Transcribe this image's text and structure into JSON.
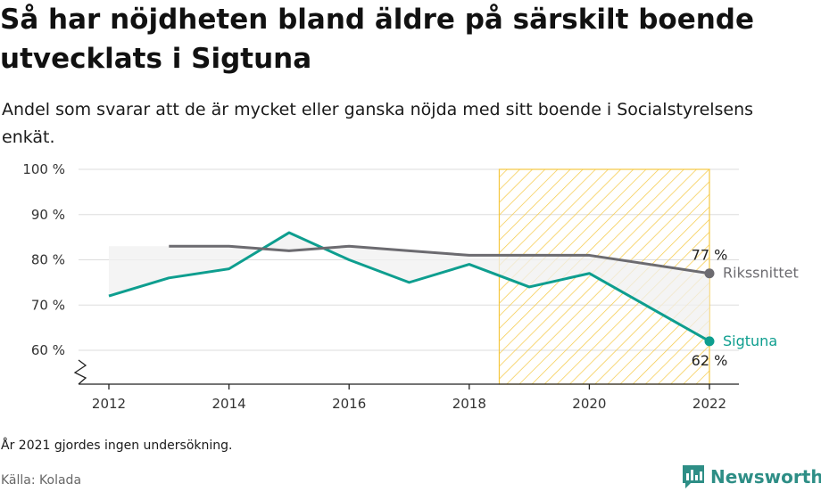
{
  "header": {
    "title": "Så har nöjdheten bland äldre på särskilt boende utvecklats i Sigtuna",
    "subtitle": "Andel som svarar att de är mycket eller ganska nöjda med sitt boende i Socialstyrelsens enkät."
  },
  "footer": {
    "note": "År 2021 gjordes ingen undersökning.",
    "source": "Källa: Kolada",
    "brand": "Newsworthy"
  },
  "colors": {
    "sigtuna": "#0e9e8f",
    "riks": "#6c6b70",
    "highlight": "#f5c842",
    "grid": "#dddddd",
    "brand": "#2e8e86"
  },
  "chart_data": {
    "type": "line",
    "title": "Så har nöjdheten bland äldre på särskilt boende utvecklats i Sigtuna",
    "xlabel": "",
    "ylabel": "",
    "xlim": [
      2012,
      2022
    ],
    "ylim": [
      60,
      100
    ],
    "y_axis_break": true,
    "x_ticks": [
      2012,
      2014,
      2016,
      2018,
      2020,
      2022
    ],
    "x_tick_labels": [
      "2012",
      "2014",
      "2016",
      "2018",
      "2020",
      "2022"
    ],
    "y_ticks": [
      60,
      70,
      80,
      90,
      100
    ],
    "y_tick_labels": [
      "60 %",
      "70 %",
      "80 %",
      "90 %",
      "100 %"
    ],
    "grid": true,
    "highlight_range": [
      2018.5,
      2022
    ],
    "series": [
      {
        "name": "Sigtuna",
        "x": [
          2012,
          2013,
          2014,
          2015,
          2016,
          2017,
          2018,
          2019,
          2020,
          2022
        ],
        "values": [
          72,
          76,
          78,
          86,
          80,
          75,
          79,
          74,
          77,
          62
        ],
        "end_label": "62 %"
      },
      {
        "name": "Rikssnittet",
        "x": [
          2013,
          2014,
          2015,
          2016,
          2017,
          2018,
          2019,
          2020,
          2022
        ],
        "values": [
          83,
          83,
          82,
          83,
          82,
          81,
          81,
          81,
          77
        ],
        "end_label": "77 %"
      }
    ]
  }
}
